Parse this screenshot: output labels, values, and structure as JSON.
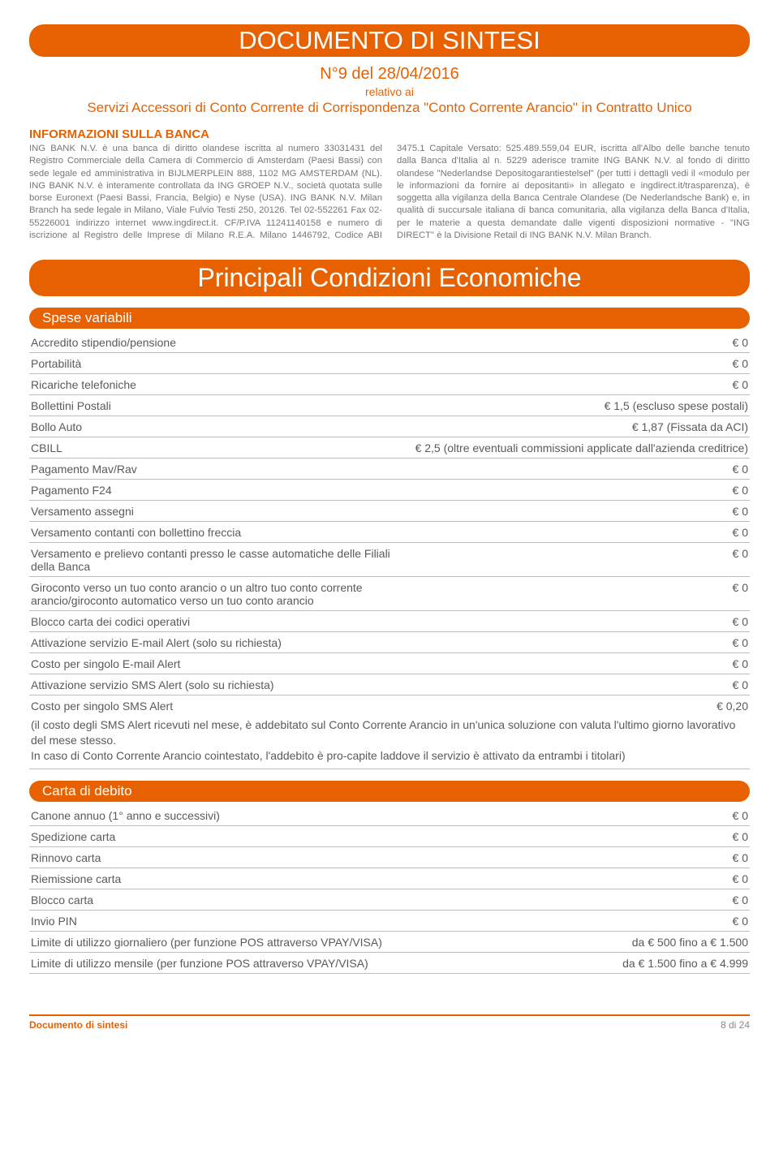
{
  "colors": {
    "accent": "#e86100",
    "text": "#666666",
    "rule": "#bfbfbf"
  },
  "header": {
    "main_title": "DOCUMENTO DI SINTESI",
    "doc_no": "N°9 del 28/04/2016",
    "relativo": "relativo ai",
    "servizi": "Servizi Accessori di Conto Corrente di Corrispondenza \"Conto Corrente Arancio\" in Contratto Unico"
  },
  "info": {
    "heading": "INFORMAZIONI SULLA BANCA",
    "body": "ING BANK N.V. è una banca di diritto olandese iscritta al numero 33031431 del Registro Commerciale della Camera di Commercio di Amsterdam (Paesi Bassi) con sede legale ed amministrativa in BIJLMERPLEIN 888, 1102 MG AMSTERDAM (NL). ING BANK N.V. è interamente controllata da ING GROEP N.V., società quotata sulle borse Euronext (Paesi Bassi, Francia, Belgio) e Nyse (USA). ING BANK N.V. Milan Branch ha sede legale in Milano, Viale Fulvio Testi 250, 20126. Tel 02-552261 Fax 02-55226001 indirizzo internet www.ingdirect.it. CF/P.IVA 11241140158 e numero di iscrizione al Registro delle Imprese di Milano R.E.A. Milano 1446792, Codice ABI 3475.1 Capitale Versato: 525.489.559,04 EUR, iscritta all'Albo delle banche tenuto dalla Banca d'Italia al n. 5229 aderisce tramite ING BANK N.V. al fondo di diritto olandese \"Nederlandse Depositogarantiestelsel\" (per tutti i dettagli vedi il «modulo per le informazioni da fornire ai depositanti» in allegato e ingdirect.it/trasparenza), è soggetta alla vigilanza della Banca Centrale Olandese (De Nederlandsche Bank) e, in qualità di succursale italiana di banca comunitaria, alla vigilanza della Banca d'Italia, per le materie a questa demandate dalle vigenti disposizioni normative - \"ING DIRECT\" è la Divisione Retail di ING BANK N.V. Milan Branch."
  },
  "section_title": "Principali Condizioni Economiche",
  "spese": {
    "header": "Spese variabili",
    "rows": [
      {
        "label": "Accredito stipendio/pensione",
        "value": "€ 0"
      },
      {
        "label": "Portabilità",
        "value": "€ 0"
      },
      {
        "label": "Ricariche telefoniche",
        "value": "€ 0"
      },
      {
        "label": "Bollettini Postali",
        "value": "€ 1,5 (escluso spese postali)"
      },
      {
        "label": "Bollo Auto",
        "value": "€ 1,87 (Fissata da ACI)"
      },
      {
        "label": "CBILL",
        "value": "€ 2,5 (oltre eventuali commissioni applicate dall'azienda creditrice)"
      },
      {
        "label": "Pagamento Mav/Rav",
        "value": "€ 0"
      },
      {
        "label": "Pagamento F24",
        "value": "€ 0"
      },
      {
        "label": "Versamento assegni",
        "value": "€ 0"
      },
      {
        "label": "Versamento contanti con bollettino freccia",
        "value": "€ 0"
      },
      {
        "label": "Versamento e prelievo contanti presso le casse automatiche delle Filiali della Banca",
        "value": "€ 0"
      },
      {
        "label": "Giroconto verso un tuo conto arancio o un altro tuo conto corrente arancio/giroconto automatico verso un tuo conto arancio",
        "value": "€ 0"
      },
      {
        "label": "Blocco carta dei codici operativi",
        "value": "€ 0"
      },
      {
        "label": "Attivazione servizio E-mail Alert (solo su richiesta)",
        "value": "€ 0"
      },
      {
        "label": "Costo per singolo E-mail Alert",
        "value": "€ 0"
      },
      {
        "label": "Attivazione servizio SMS Alert (solo su richiesta)",
        "value": "€ 0"
      }
    ],
    "sms_row": {
      "label": "Costo per singolo SMS Alert",
      "value": "€ 0,20"
    },
    "sms_note": "(il costo degli SMS Alert ricevuti nel mese, è addebitato sul Conto Corrente Arancio in un'unica soluzione con valuta l'ultimo giorno lavorativo del mese stesso.\nIn caso di Conto Corrente Arancio cointestato, l'addebito è pro-capite laddove il servizio è attivato da entrambi i titolari)"
  },
  "carta": {
    "header": "Carta di debito",
    "rows": [
      {
        "label": "Canone annuo (1° anno e successivi)",
        "value": "€ 0"
      },
      {
        "label": "Spedizione carta",
        "value": "€ 0"
      },
      {
        "label": "Rinnovo carta",
        "value": "€ 0"
      },
      {
        "label": "Riemissione carta",
        "value": "€ 0"
      },
      {
        "label": "Blocco carta",
        "value": "€ 0"
      },
      {
        "label": "Invio PIN",
        "value": "€ 0"
      },
      {
        "label": "Limite di utilizzo giornaliero (per funzione POS attraverso VPAY/VISA)",
        "value": "da € 500 fino a € 1.500"
      },
      {
        "label": "Limite di utilizzo mensile (per funzione POS attraverso VPAY/VISA)",
        "value": "da € 1.500 fino a € 4.999"
      }
    ]
  },
  "footer": {
    "left": "Documento di sintesi",
    "right": "8 di 24"
  }
}
